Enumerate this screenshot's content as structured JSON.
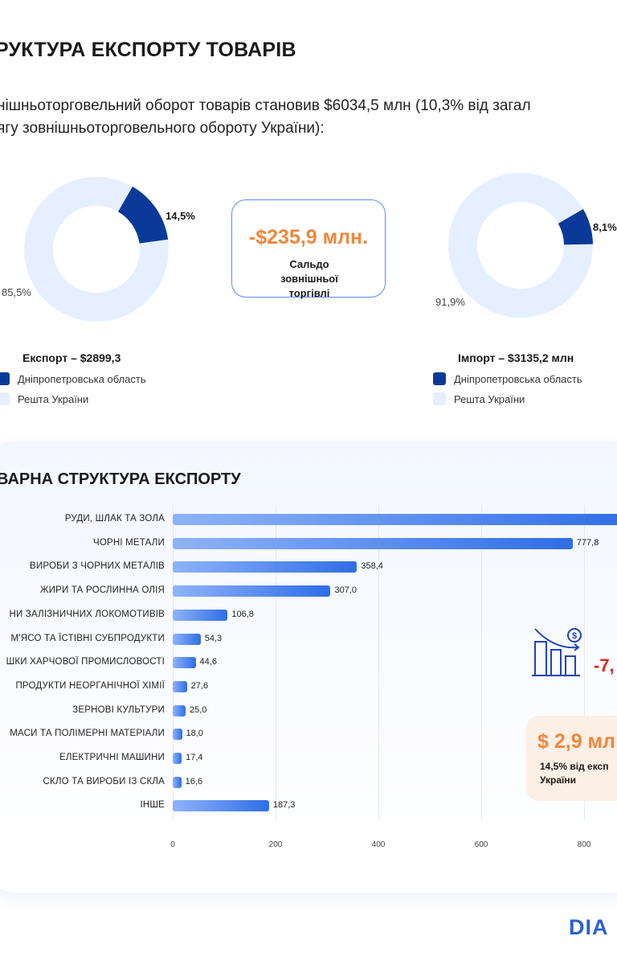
{
  "title": "РУКТУРА ЕКСПОРТУ ТОВАРІВ",
  "intro": [
    "нішньоторговельний оборот товарів становив $6034,5 млн (10,3% від загал",
    "ягу зовнішньоторговельного обороту України):"
  ],
  "colors": {
    "dark": "#0a3a99",
    "light": "#e6efff",
    "accent": "#f0873a",
    "red": "#e32020"
  },
  "export": {
    "label": "Експорт – $2899,3",
    "share": 14.5,
    "share_label": "14,5%",
    "rest_label": "85,5%"
  },
  "import": {
    "label": "Імпорт – $3135,2 млн",
    "share": 8.1,
    "share_label": "8,1%",
    "rest_label": "91,9%"
  },
  "saldo": {
    "value": "-$235,9 млн.",
    "label": "Сальдо зовнішньої торгівлі"
  },
  "legend": {
    "region": "Дніпропетровська область",
    "rest": "Решта України"
  },
  "subtitle": "ВАРНА СТРУКТУРА ЕКСПОРТУ",
  "drop_value": "-7,",
  "card": {
    "value": "$ 2,9 мл",
    "line1": "14,5% від експ",
    "line2": "України"
  },
  "logo": "DIA",
  "chart_data": {
    "type": "bar",
    "orientation": "horizontal",
    "title": "ВАРНА СТРУКТУРА ЕКСПОРТУ",
    "xlim": [
      0,
      860
    ],
    "ticks": [
      "0",
      "200",
      "400",
      "600",
      "800"
    ],
    "categories": [
      "РУДИ, ШЛАК ТА ЗОЛА",
      "ЧОРНІ МЕТАЛИ",
      "ВИРОБИ З ЧОРНИХ МЕТАЛІВ",
      "ЖИРИ ТА РОСЛИННА ОЛІЯ",
      "НИ ЗАЛІЗНИЧНИХ ЛОКОМОТИВІВ",
      "М'ЯСО ТА ЇСТІВНІ СУБПРОДУКТИ",
      "ШКИ ХАРЧОВОЇ ПРОМИСЛОВОСТІ",
      "ПРОДУКТИ НЕОРГАНІЧНОЇ ХІМІЇ",
      "ЗЕРНОВІ КУЛЬТУРИ",
      "МАСИ ТА ПОЛІМЕРНІ МАТЕРІАЛИ",
      "ЕЛЕКТРИЧНІ МАШИНИ",
      "СКЛО ТА ВИРОБИ ІЗ СКЛА",
      "ІНШЕ"
    ],
    "values": [
      null,
      777.8,
      358.4,
      307.0,
      106.8,
      54.3,
      44.6,
      27.6,
      25.0,
      18.0,
      17.4,
      16.6,
      187.3
    ],
    "labels": [
      "",
      "777,8",
      "358,4",
      "307,0",
      "106,8",
      "54,3",
      "44,6",
      "27,6",
      "25,0",
      "18,0",
      "17,4",
      "16,6",
      "187,3"
    ]
  }
}
